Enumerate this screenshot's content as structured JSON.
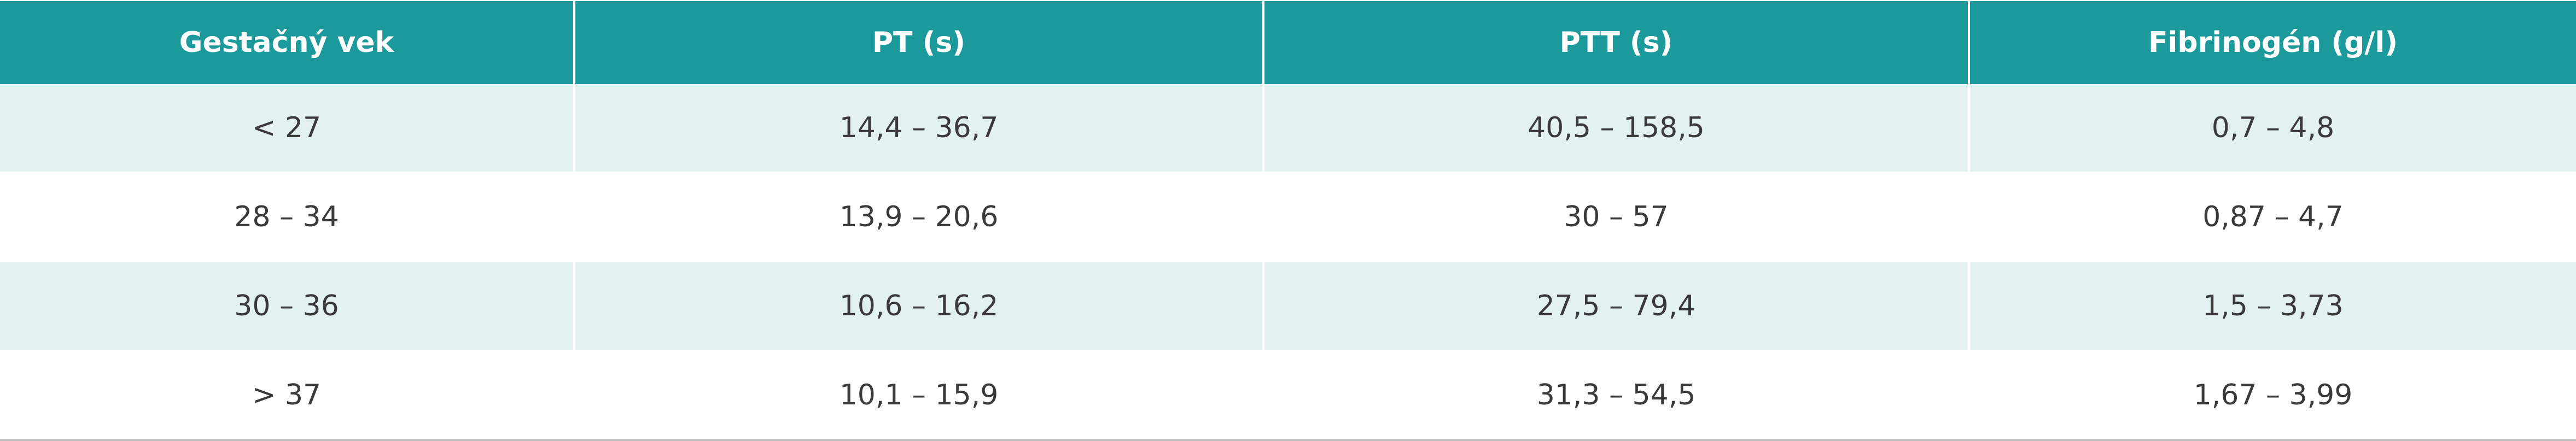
{
  "table": {
    "header": [
      "Gestačný vek",
      "PT (s)",
      "PTT (s)",
      "Fibrinogén (g/l)"
    ],
    "rows": [
      [
        "< 27",
        "14,4 – 36,7",
        "40,5 – 158,5",
        "0,7 – 4,8"
      ],
      [
        "28 – 34",
        "13,9 – 20,6",
        "30 – 57",
        "0,87 – 4,7"
      ],
      [
        "30 – 36",
        "10,6 – 16,2",
        "27,5 – 79,4",
        "1,5 – 3,73"
      ],
      [
        "> 37",
        "10,1 – 15,9",
        "31,3 – 54,5",
        "1,67 – 3,99"
      ]
    ]
  }
}
